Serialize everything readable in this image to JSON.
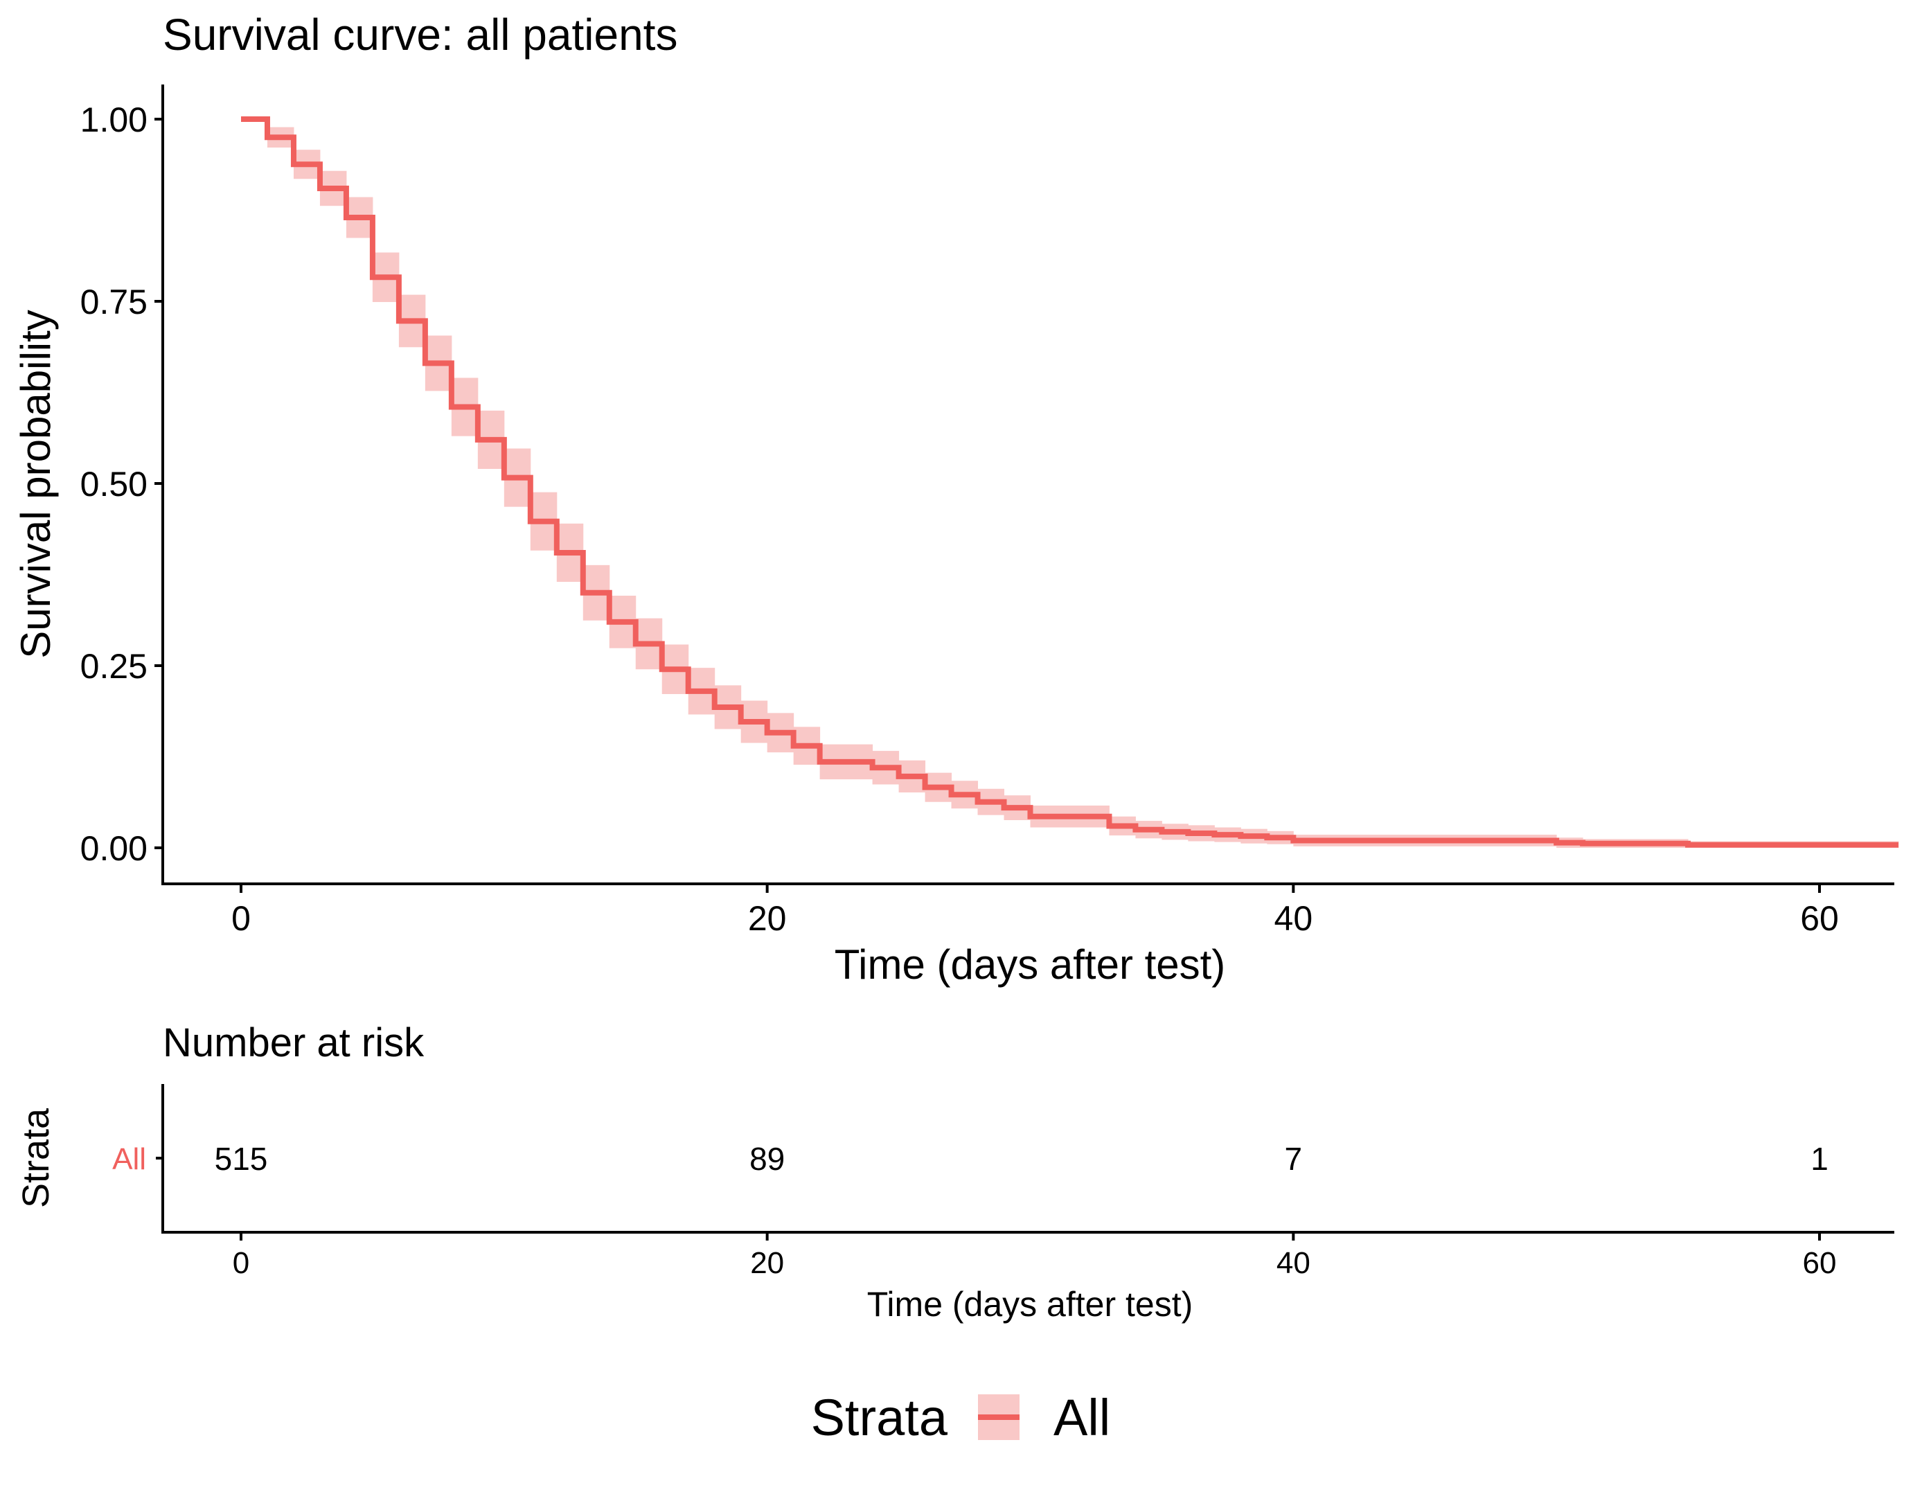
{
  "colors": {
    "accent": "#f0605d",
    "band": "#f9c8c7",
    "axis": "#000000"
  },
  "chart_data": [
    {
      "type": "line",
      "step": true,
      "title": "Survival curve: all patients",
      "xlabel": "Time (days after test)",
      "ylabel": "Survival probability",
      "xlim": [
        -1.5,
        63
      ],
      "ylim": [
        0,
        1
      ],
      "grid": false,
      "x_ticks": [
        "0",
        "20",
        "40",
        "60"
      ],
      "x_tick_values": [
        0,
        20,
        40,
        60
      ],
      "y_ticks": [
        "0.00",
        "0.25",
        "0.50",
        "0.75",
        "1.00"
      ],
      "y_tick_values": [
        0,
        0.25,
        0.5,
        0.75,
        1.0
      ],
      "series": [
        {
          "name": "All",
          "color": "#f0605d",
          "x": [
            0,
            1,
            2,
            3,
            4,
            5,
            6,
            7,
            8,
            9,
            10,
            11,
            12,
            13,
            14,
            15,
            16,
            17,
            18,
            19,
            20,
            21,
            22,
            24,
            25,
            26,
            27,
            28,
            29,
            30,
            33,
            34,
            35,
            36,
            37,
            38,
            39,
            40,
            50,
            51,
            55,
            63
          ],
          "y": [
            1.0,
            0.975,
            0.938,
            0.905,
            0.865,
            0.783,
            0.723,
            0.665,
            0.605,
            0.56,
            0.508,
            0.448,
            0.405,
            0.35,
            0.31,
            0.28,
            0.245,
            0.215,
            0.193,
            0.173,
            0.158,
            0.14,
            0.118,
            0.11,
            0.098,
            0.083,
            0.073,
            0.063,
            0.055,
            0.043,
            0.03,
            0.025,
            0.022,
            0.02,
            0.018,
            0.016,
            0.014,
            0.01,
            0.007,
            0.006,
            0.004,
            0.004
          ],
          "ci_width": [
            0.0,
            0.014,
            0.02,
            0.024,
            0.028,
            0.034,
            0.036,
            0.038,
            0.04,
            0.04,
            0.04,
            0.04,
            0.04,
            0.038,
            0.036,
            0.035,
            0.034,
            0.032,
            0.03,
            0.029,
            0.027,
            0.026,
            0.024,
            0.023,
            0.022,
            0.02,
            0.019,
            0.018,
            0.017,
            0.015,
            0.013,
            0.012,
            0.011,
            0.011,
            0.01,
            0.01,
            0.009,
            0.008,
            0.007,
            0.006,
            0.005,
            0.005
          ]
        }
      ],
      "legend": {
        "title": "Strata",
        "entries": [
          "All"
        ],
        "position": "bottom"
      }
    },
    {
      "type": "table",
      "title": "Number at risk",
      "xlabel": "Time (days after test)",
      "ylabel": "Strata",
      "x_ticks": [
        "0",
        "20",
        "40",
        "60"
      ],
      "x_tick_values": [
        0,
        20,
        40,
        60
      ],
      "rows": [
        {
          "name": "All",
          "color": "#f0605d",
          "x": [
            0,
            20,
            40,
            60
          ],
          "values": [
            "515",
            "89",
            "7",
            "1"
          ]
        }
      ]
    }
  ]
}
